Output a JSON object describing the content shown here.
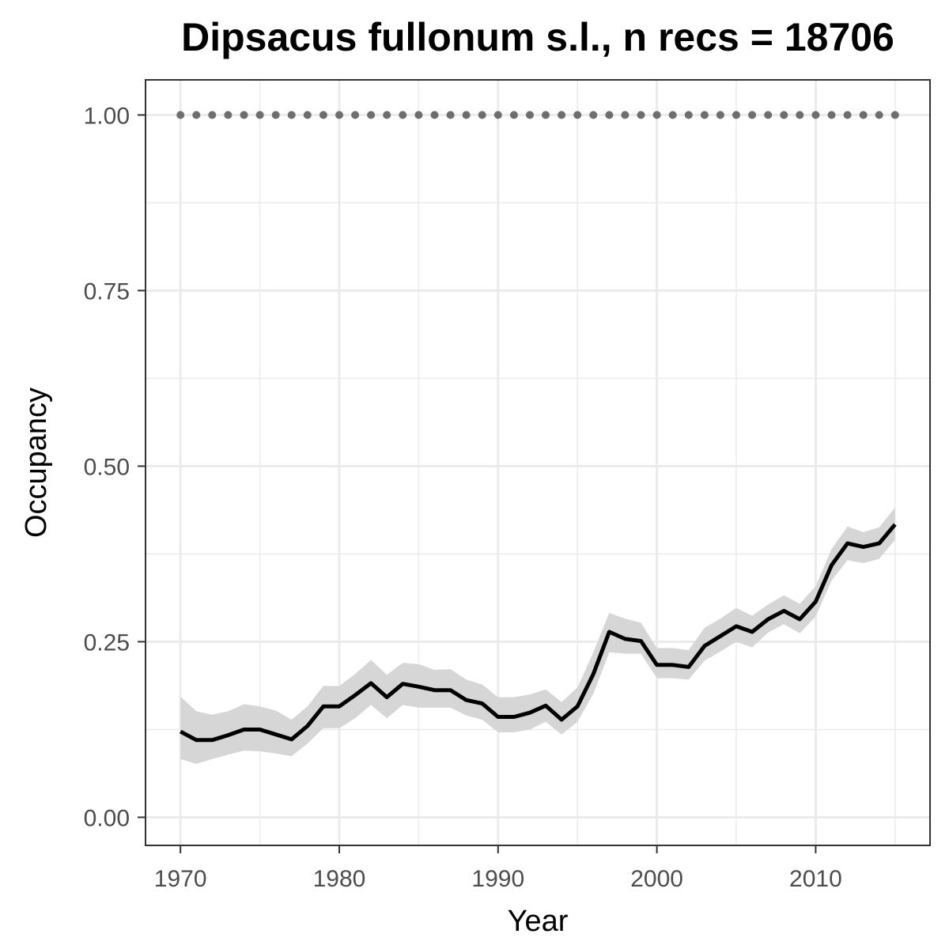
{
  "chart_data": {
    "type": "line",
    "title": "Dipsacus fullonum s.l., n recs = 18706",
    "xlabel": "Year",
    "ylabel": "Occupancy",
    "xlim": [
      1967.8,
      2017.2
    ],
    "ylim": [
      -0.04,
      1.05
    ],
    "x_ticks": [
      1970,
      1980,
      1990,
      2000,
      2010
    ],
    "x_tick_labels": [
      "1970",
      "1980",
      "1990",
      "2000",
      "2010"
    ],
    "y_ticks": [
      0.0,
      0.25,
      0.5,
      0.75,
      1.0
    ],
    "y_tick_labels": [
      "0.00",
      "0.25",
      "0.50",
      "0.75",
      "1.00"
    ],
    "grid": true,
    "legend": "none",
    "colors": {
      "line": "#000000",
      "ribbon": "#d6d6d6",
      "reference": "#6e6e6e",
      "grid": "#ebebeb",
      "panel_border": "#333333",
      "tick_label": "#4d4d4d"
    },
    "series": [
      {
        "style": "line",
        "x": [
          1970,
          1971,
          1972,
          1973,
          1974,
          1975,
          1976,
          1977,
          1978,
          1979,
          1980,
          1981,
          1982,
          1983,
          1984,
          1985,
          1986,
          1987,
          1988,
          1989,
          1990,
          1991,
          1992,
          1993,
          1994,
          1995,
          1996,
          1997,
          1998,
          1999,
          2000,
          2001,
          2002,
          2003,
          2004,
          2005,
          2006,
          2007,
          2008,
          2009,
          2010,
          2011,
          2012,
          2013,
          2014,
          2015
        ],
        "y": [
          0.122,
          0.11,
          0.11,
          0.117,
          0.125,
          0.125,
          0.118,
          0.111,
          0.13,
          0.158,
          0.158,
          0.174,
          0.191,
          0.171,
          0.19,
          0.186,
          0.181,
          0.181,
          0.167,
          0.162,
          0.143,
          0.143,
          0.149,
          0.159,
          0.139,
          0.158,
          0.204,
          0.264,
          0.254,
          0.251,
          0.217,
          0.217,
          0.214,
          0.244,
          0.258,
          0.272,
          0.264,
          0.282,
          0.294,
          0.282,
          0.307,
          0.359,
          0.39,
          0.385,
          0.39,
          0.417
        ],
        "lower": [
          0.083,
          0.076,
          0.083,
          0.089,
          0.095,
          0.094,
          0.091,
          0.087,
          0.105,
          0.127,
          0.127,
          0.141,
          0.16,
          0.141,
          0.16,
          0.156,
          0.156,
          0.156,
          0.145,
          0.139,
          0.121,
          0.121,
          0.125,
          0.136,
          0.118,
          0.136,
          0.176,
          0.235,
          0.233,
          0.233,
          0.198,
          0.198,
          0.196,
          0.223,
          0.236,
          0.25,
          0.242,
          0.263,
          0.275,
          0.262,
          0.286,
          0.337,
          0.366,
          0.362,
          0.368,
          0.395
        ],
        "upper": [
          0.172,
          0.151,
          0.146,
          0.151,
          0.161,
          0.158,
          0.152,
          0.139,
          0.158,
          0.187,
          0.187,
          0.204,
          0.224,
          0.203,
          0.22,
          0.218,
          0.21,
          0.211,
          0.196,
          0.189,
          0.171,
          0.171,
          0.175,
          0.182,
          0.164,
          0.185,
          0.235,
          0.291,
          0.283,
          0.277,
          0.241,
          0.241,
          0.238,
          0.27,
          0.283,
          0.298,
          0.287,
          0.303,
          0.316,
          0.304,
          0.329,
          0.382,
          0.414,
          0.406,
          0.413,
          0.441
        ]
      },
      {
        "style": "dotted",
        "x": [
          1970,
          1971,
          1972,
          1973,
          1974,
          1975,
          1976,
          1977,
          1978,
          1979,
          1980,
          1981,
          1982,
          1983,
          1984,
          1985,
          1986,
          1987,
          1988,
          1989,
          1990,
          1991,
          1992,
          1993,
          1994,
          1995,
          1996,
          1997,
          1998,
          1999,
          2000,
          2001,
          2002,
          2003,
          2004,
          2005,
          2006,
          2007,
          2008,
          2009,
          2010,
          2011,
          2012,
          2013,
          2014,
          2015
        ],
        "y": [
          1,
          1,
          1,
          1,
          1,
          1,
          1,
          1,
          1,
          1,
          1,
          1,
          1,
          1,
          1,
          1,
          1,
          1,
          1,
          1,
          1,
          1,
          1,
          1,
          1,
          1,
          1,
          1,
          1,
          1,
          1,
          1,
          1,
          1,
          1,
          1,
          1,
          1,
          1,
          1,
          1,
          1,
          1,
          1,
          1,
          1
        ]
      }
    ]
  }
}
